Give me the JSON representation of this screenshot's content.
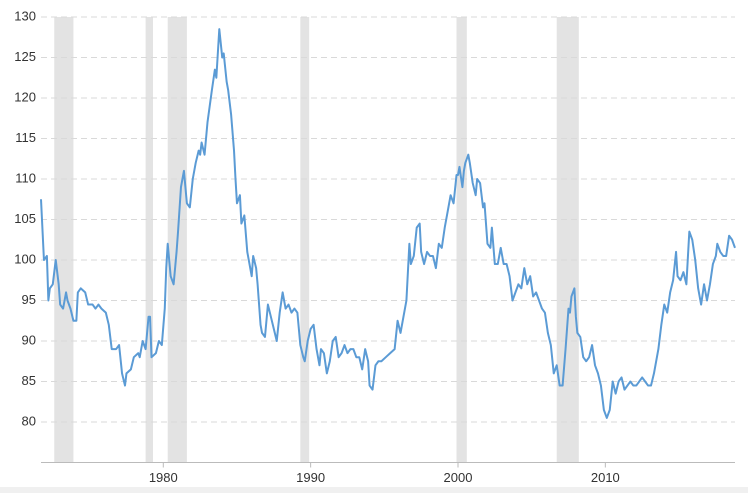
{
  "chart_data": {
    "type": "line",
    "shaded_regions": [
      [
        1972.6,
        1973.9
      ],
      [
        1978.8,
        1979.3
      ],
      [
        1980.3,
        1981.6
      ],
      [
        1989.3,
        1989.9
      ],
      [
        1999.9,
        2000.6
      ],
      [
        2006.7,
        2008.2
      ]
    ],
    "shade_color": "#e3e3e3",
    "xlim": [
      1971.7,
      2018.8
    ],
    "xticks": [
      1980,
      1990,
      2000,
      2010
    ],
    "ylim": [
      75,
      130
    ],
    "yticks": [
      80,
      85,
      90,
      95,
      100,
      105,
      110,
      115,
      120,
      125,
      130
    ],
    "grid": true,
    "series": [
      {
        "color": "#5b9bd5",
        "x": [
          1971.7,
          1971.9,
          1972.1,
          1972.2,
          1972.3,
          1972.5,
          1972.7,
          1972.9,
          1973.0,
          1973.2,
          1973.4,
          1973.5,
          1973.7,
          1973.9,
          1974.1,
          1974.2,
          1974.4,
          1974.7,
          1974.9,
          1975.2,
          1975.4,
          1975.6,
          1975.8,
          1976.1,
          1976.3,
          1976.5,
          1976.8,
          1977.0,
          1977.2,
          1977.4,
          1977.5,
          1977.8,
          1978.0,
          1978.3,
          1978.4,
          1978.6,
          1978.8,
          1979.0,
          1979.1,
          1979.2,
          1979.5,
          1979.7,
          1979.9,
          1980.1,
          1980.2,
          1980.3,
          1980.5,
          1980.7,
          1980.9,
          1981.0,
          1981.2,
          1981.4,
          1981.6,
          1981.8,
          1982.0,
          1982.2,
          1982.4,
          1982.5,
          1982.6,
          1982.8,
          1983.0,
          1983.3,
          1983.5,
          1983.6,
          1983.8,
          1984.0,
          1984.1,
          1984.3,
          1984.4,
          1984.6,
          1984.8,
          1984.9,
          1985.0,
          1985.2,
          1985.3,
          1985.5,
          1985.7,
          1985.8,
          1986.0,
          1986.1,
          1986.3,
          1986.4,
          1986.6,
          1986.7,
          1986.9,
          1987.1,
          1987.3,
          1987.5,
          1987.7,
          1987.9,
          1988.1,
          1988.3,
          1988.5,
          1988.7,
          1988.9,
          1989.1,
          1989.3,
          1989.5,
          1989.6,
          1989.8,
          1990.0,
          1990.2,
          1990.4,
          1990.6,
          1990.7,
          1990.9,
          1991.1,
          1991.3,
          1991.5,
          1991.7,
          1991.9,
          1992.1,
          1992.3,
          1992.5,
          1992.7,
          1992.9,
          1993.1,
          1993.3,
          1993.5,
          1993.7,
          1993.9,
          1994.0,
          1994.2,
          1994.4,
          1994.6,
          1994.8,
          1995.1,
          1995.4,
          1995.7,
          1995.9,
          1996.1,
          1996.3,
          1996.5,
          1996.7,
          1996.8,
          1997.0,
          1997.2,
          1997.4,
          1997.5,
          1997.7,
          1997.9,
          1998.1,
          1998.3,
          1998.5,
          1998.7,
          1998.9,
          1999.1,
          1999.3,
          1999.5,
          1999.7,
          1999.9,
          2000.0,
          2000.1,
          2000.3,
          2000.4,
          2000.5,
          2000.7,
          2000.8,
          2001.0,
          2001.2,
          2001.3,
          2001.5,
          2001.7,
          2001.8,
          2002.0,
          2002.2,
          2002.3,
          2002.5,
          2002.7,
          2002.9,
          2003.1,
          2003.3,
          2003.5,
          2003.7,
          2003.9,
          2004.1,
          2004.3,
          2004.5,
          2004.7,
          2004.9,
          2005.1,
          2005.3,
          2005.5,
          2005.7,
          2005.9,
          2006.1,
          2006.3,
          2006.5,
          2006.7,
          2006.9,
          2007.1,
          2007.3,
          2007.5,
          2007.6,
          2007.7,
          2007.9,
          2008.0,
          2008.1,
          2008.3,
          2008.5,
          2008.7,
          2008.9,
          2009.1,
          2009.3,
          2009.5,
          2009.7,
          2009.9,
          2010.1,
          2010.3,
          2010.5,
          2010.7,
          2010.9,
          2011.1,
          2011.3,
          2011.5,
          2011.7,
          2011.9,
          2012.1,
          2012.3,
          2012.5,
          2012.7,
          2012.9,
          2013.1,
          2013.3,
          2013.6,
          2013.8,
          2014.0,
          2014.2,
          2014.4,
          2014.6,
          2014.8,
          2014.9,
          2015.1,
          2015.3,
          2015.5,
          2015.7,
          2015.9,
          2016.1,
          2016.3,
          2016.5,
          2016.7,
          2016.9,
          2017.1,
          2017.3,
          2017.5,
          2017.6,
          2017.8,
          2018.0,
          2018.2,
          2018.4,
          2018.6,
          2018.8
        ],
        "values": [
          107.5,
          100,
          100.5,
          95,
          96.5,
          97,
          100,
          97,
          94.5,
          94,
          96,
          95,
          94,
          92.5,
          92.5,
          96,
          96.5,
          96,
          94.5,
          94.5,
          94,
          94.5,
          94,
          93.5,
          92,
          89,
          89,
          89.5,
          86,
          84.5,
          86,
          86.5,
          88,
          88.5,
          88,
          90,
          89,
          93,
          93,
          88,
          88.5,
          90,
          89.5,
          94,
          99,
          102,
          98,
          97,
          101,
          103.5,
          109,
          111,
          107,
          106.5,
          110,
          112,
          113.5,
          113,
          114.5,
          113,
          117,
          121,
          123.5,
          122.5,
          128.5,
          125,
          125.5,
          122,
          121,
          118,
          113.5,
          110,
          107,
          108,
          104.5,
          105.5,
          101,
          100,
          98,
          100.5,
          99,
          97,
          92,
          91,
          90.5,
          94.5,
          93,
          91.5,
          90,
          93.5,
          96,
          94,
          94.5,
          93.5,
          94,
          93.5,
          89.5,
          88,
          87.5,
          90,
          91.5,
          92,
          89,
          87,
          89,
          88.5,
          86,
          87.5,
          90,
          90.5,
          88,
          88.5,
          89.5,
          88.5,
          89,
          89,
          88,
          88,
          86.5,
          89,
          87.5,
          84.5,
          84,
          87,
          87.5,
          87.5,
          88,
          88.5,
          89,
          92.5,
          91,
          93,
          95,
          102,
          99.5,
          100.5,
          104,
          104.5,
          101,
          99.5,
          101,
          100.5,
          100.5,
          99,
          102,
          101.5,
          104,
          106,
          108,
          107,
          110.5,
          110.5,
          111.5,
          109,
          111,
          112,
          113,
          112,
          109.5,
          108,
          110,
          109.5,
          106.5,
          107,
          102,
          101.5,
          104,
          99.5,
          99.5,
          101.5,
          99.5,
          99.5,
          98,
          95,
          96,
          97,
          96.5,
          99,
          97,
          98,
          95.5,
          96,
          95,
          94,
          93.5,
          91,
          89.5,
          86,
          87,
          84.5,
          84.5,
          89,
          94,
          93.5,
          95.5,
          96.5,
          93,
          91,
          90.5,
          88,
          87.5,
          88,
          89.5,
          87,
          86,
          84.5,
          81.5,
          80.5,
          81.5,
          85,
          83.5,
          85,
          85.5,
          84,
          84.5,
          85,
          84.5,
          84.5,
          85,
          85.5,
          85,
          84.5,
          84.5,
          86,
          89,
          92,
          94.5,
          93.5,
          96,
          97.5,
          101,
          98,
          97.5,
          98.5,
          97,
          103.5,
          102.5,
          100,
          96.5,
          94.5,
          97,
          95,
          97,
          99.5,
          100.5,
          102,
          101,
          100.5,
          100.5,
          103,
          102.5,
          101.5
        ]
      }
    ]
  }
}
